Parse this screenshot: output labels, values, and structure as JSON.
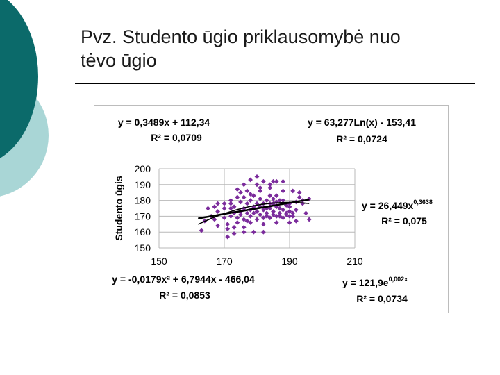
{
  "slide": {
    "title_line1": "Pvz. Studento ūgio priklausomybė nuo",
    "title_line2": "tėvo ūgio",
    "accent_colors": [
      "#0b6a6a",
      "#a9d6d6"
    ]
  },
  "chart_data": {
    "type": "scatter",
    "title": "",
    "xlabel": "",
    "ylabel": "Studento ūgis",
    "xlim": [
      150,
      210
    ],
    "ylim": [
      150,
      200
    ],
    "xticks": [
      "150",
      "170",
      "190",
      "210"
    ],
    "yticks": [
      "150",
      "160",
      "170",
      "180",
      "190",
      "200"
    ],
    "grid": true,
    "marker_color": "#7b2c9c",
    "points": [
      [
        168,
        173
      ],
      [
        168,
        178
      ],
      [
        170,
        169
      ],
      [
        170,
        175
      ],
      [
        170,
        178
      ],
      [
        171,
        162
      ],
      [
        171,
        165
      ],
      [
        172,
        170
      ],
      [
        172,
        175
      ],
      [
        172,
        180
      ],
      [
        173,
        163
      ],
      [
        173,
        172
      ],
      [
        173,
        176
      ],
      [
        174,
        187
      ],
      [
        174,
        182
      ],
      [
        174,
        169
      ],
      [
        174,
        166
      ],
      [
        175,
        173
      ],
      [
        175,
        179
      ],
      [
        175,
        171
      ],
      [
        176,
        168
      ],
      [
        176,
        175
      ],
      [
        176,
        182
      ],
      [
        176,
        163
      ],
      [
        177,
        178
      ],
      [
        177,
        172
      ],
      [
        177,
        186
      ],
      [
        178,
        170
      ],
      [
        178,
        174
      ],
      [
        178,
        180
      ],
      [
        178,
        166
      ],
      [
        179,
        176
      ],
      [
        179,
        172
      ],
      [
        179,
        183
      ],
      [
        179,
        160
      ],
      [
        180,
        168
      ],
      [
        180,
        190
      ],
      [
        180,
        178
      ],
      [
        180,
        173
      ],
      [
        181,
        171
      ],
      [
        181,
        176
      ],
      [
        181,
        181
      ],
      [
        181,
        186
      ],
      [
        182,
        169
      ],
      [
        182,
        174
      ],
      [
        182,
        178
      ],
      [
        182,
        165
      ],
      [
        183,
        172
      ],
      [
        183,
        175
      ],
      [
        183,
        180
      ],
      [
        183,
        170
      ],
      [
        184,
        183
      ],
      [
        184,
        169
      ],
      [
        184,
        175
      ],
      [
        184,
        188
      ],
      [
        185,
        173
      ],
      [
        185,
        178
      ],
      [
        185,
        171
      ],
      [
        185,
        181
      ],
      [
        186,
        170
      ],
      [
        186,
        176
      ],
      [
        186,
        179
      ],
      [
        186,
        183
      ],
      [
        187,
        172
      ],
      [
        187,
        175
      ],
      [
        187,
        170
      ],
      [
        188,
        180
      ],
      [
        188,
        174
      ],
      [
        188,
        169
      ],
      [
        188,
        186
      ],
      [
        189,
        177
      ],
      [
        189,
        171
      ],
      [
        189,
        172
      ],
      [
        190,
        173
      ],
      [
        190,
        178
      ],
      [
        190,
        176
      ],
      [
        190,
        170
      ],
      [
        191,
        172
      ],
      [
        191,
        170
      ],
      [
        192,
        167
      ],
      [
        192,
        174
      ],
      [
        192,
        179
      ],
      [
        193,
        182
      ],
      [
        193,
        185
      ],
      [
        194,
        178
      ],
      [
        194,
        180
      ],
      [
        195,
        172
      ],
      [
        196,
        168
      ],
      [
        196,
        181
      ],
      [
        165,
        175
      ],
      [
        164,
        167
      ],
      [
        163,
        161
      ],
      [
        166,
        170
      ],
      [
        167,
        168
      ],
      [
        167,
        176
      ],
      [
        186,
        192
      ],
      [
        182,
        192
      ],
      [
        178,
        193
      ],
      [
        176,
        190
      ],
      [
        184,
        190
      ],
      [
        180,
        195
      ],
      [
        188,
        192
      ],
      [
        172,
        178
      ],
      [
        175,
        185
      ],
      [
        178,
        184
      ],
      [
        186,
        166
      ],
      [
        190,
        166
      ],
      [
        173,
        159
      ],
      [
        176,
        160
      ],
      [
        182,
        160
      ],
      [
        171,
        157
      ],
      [
        184,
        178
      ],
      [
        185,
        192
      ],
      [
        191,
        186
      ],
      [
        168,
        164
      ],
      [
        181,
        188
      ],
      [
        187,
        180
      ],
      [
        177,
        167
      ]
    ],
    "series": [
      {
        "type": "linear",
        "equation": "y = 0,3489x + 112,34",
        "r2": "R² = 0,0709",
        "a": 0.3489,
        "b": 112.34
      },
      {
        "type": "logarithmic",
        "equation": "y = 63,277Ln(x) - 153,41",
        "r2": "R² = 0,0724",
        "a": 63.277,
        "b": -153.41
      },
      {
        "type": "power",
        "equation": "y = 26,449x",
        "exponent_label": "0,3638",
        "r2": "R² = 0,075",
        "a": 26.449,
        "b": 0.3638
      },
      {
        "type": "polynomial",
        "equation": "y = -0,0179x² + 6,7944x - 466,04",
        "r2": "R² = 0,0853",
        "a": -0.0179,
        "b": 6.7944,
        "c": -466.04
      },
      {
        "type": "exponential",
        "equation": "y = 121,9e",
        "exponent_label": "0,002x",
        "r2": "R² = 0,0734",
        "a": 121.9,
        "b": 0.002
      }
    ],
    "fit_x_range": [
      162,
      196
    ]
  }
}
